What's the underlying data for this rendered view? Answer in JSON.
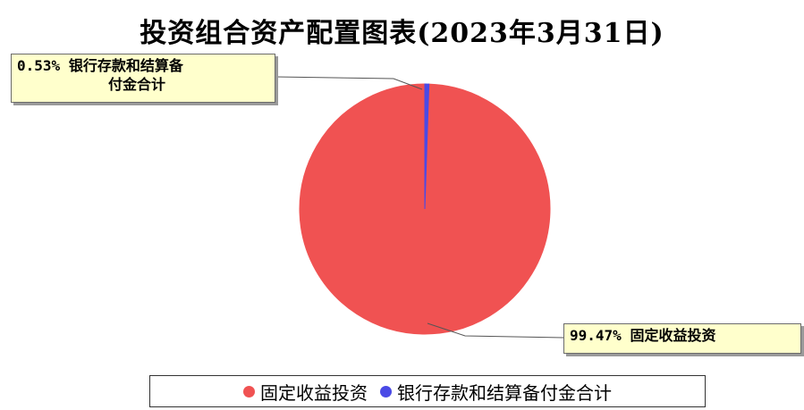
{
  "chart_data": {
    "type": "pie",
    "title": "投资组合资产配置图表(2023年3月31日)",
    "series": [
      {
        "name": "固定收益投资",
        "value": 99.47,
        "label": "99.47%",
        "color": "#f05252"
      },
      {
        "name": "银行存款和结算备付金合计",
        "value": 0.53,
        "label": "0.53%",
        "color": "#4a4ae6"
      }
    ],
    "legend_position": "bottom"
  },
  "callouts": {
    "deposit": {
      "pct": "0.53%",
      "line1": "银行存款和结算备",
      "line2": "付金合计"
    },
    "fixed": {
      "pct": "99.47%",
      "text": "固定收益投资"
    }
  },
  "legend": [
    {
      "label": "固定收益投资",
      "color": "#f05252"
    },
    {
      "label": "银行存款和结算备付金合计",
      "color": "#4a4ae6"
    }
  ]
}
